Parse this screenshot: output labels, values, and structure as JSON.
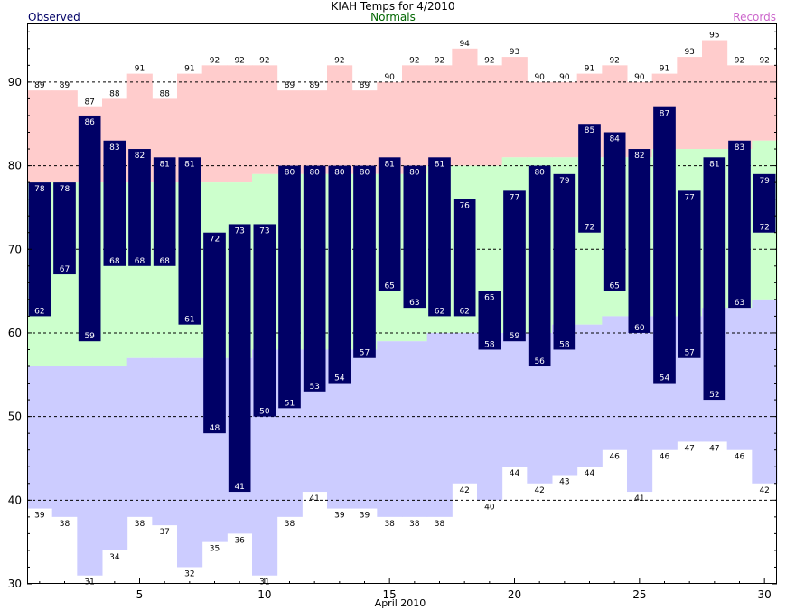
{
  "chart_data": {
    "type": "bar",
    "title": "KIAH Temps for 4/2010",
    "xlabel": "April 2010",
    "ylabel": "",
    "xlim": [
      0.5,
      30.5
    ],
    "ylim": [
      30,
      97
    ],
    "x_ticks": [
      5,
      10,
      15,
      20,
      25,
      30
    ],
    "y_ticks": [
      30,
      40,
      50,
      60,
      70,
      80,
      90
    ],
    "gridlines": [
      40,
      50,
      60,
      70,
      80,
      90
    ],
    "legend": {
      "observed": "Observed",
      "normals": "Normals",
      "records": "Records"
    },
    "colors": {
      "observed": "#000066",
      "normals": "#ccffcc",
      "records_high": "#ffcccc",
      "records_low": "#ccccff",
      "observed_label": "#000066",
      "normals_label": "#006600",
      "records_label": "#cc66cc"
    },
    "days": [
      1,
      2,
      3,
      4,
      5,
      6,
      7,
      8,
      9,
      10,
      11,
      12,
      13,
      14,
      15,
      16,
      17,
      18,
      19,
      20,
      21,
      22,
      23,
      24,
      25,
      26,
      27,
      28,
      29,
      30
    ],
    "observed_high": [
      78,
      78,
      86,
      83,
      82,
      81,
      81,
      72,
      73,
      73,
      80,
      80,
      80,
      80,
      81,
      80,
      81,
      76,
      65,
      77,
      80,
      79,
      85,
      84,
      82,
      87,
      77,
      81,
      83,
      79
    ],
    "observed_low": [
      62,
      67,
      59,
      68,
      68,
      68,
      61,
      48,
      41,
      50,
      51,
      53,
      54,
      57,
      65,
      63,
      62,
      62,
      58,
      59,
      56,
      58,
      72,
      65,
      60,
      54,
      57,
      52,
      63,
      72
    ],
    "normal_high": [
      78,
      78,
      78,
      78,
      78,
      78,
      78,
      78,
      78,
      79,
      79,
      79,
      79,
      79,
      79,
      79,
      80,
      80,
      80,
      81,
      81,
      81,
      81,
      81,
      81,
      82,
      82,
      82,
      82,
      83
    ],
    "normal_low": [
      56,
      56,
      56,
      56,
      57,
      57,
      57,
      57,
      57,
      58,
      58,
      58,
      58,
      58,
      59,
      59,
      60,
      60,
      60,
      60,
      60,
      61,
      61,
      62,
      62,
      62,
      62,
      63,
      63,
      64
    ],
    "record_high": [
      89,
      89,
      87,
      88,
      91,
      88,
      91,
      92,
      92,
      92,
      89,
      89,
      92,
      89,
      90,
      92,
      92,
      94,
      92,
      93,
      90,
      90,
      91,
      92,
      90,
      91,
      93,
      95,
      92,
      92
    ],
    "record_low": [
      39,
      38,
      31,
      34,
      38,
      37,
      32,
      35,
      36,
      31,
      38,
      41,
      39,
      39,
      38,
      38,
      38,
      42,
      40,
      44,
      42,
      43,
      44,
      46,
      41,
      46,
      47,
      47,
      46,
      42
    ]
  }
}
